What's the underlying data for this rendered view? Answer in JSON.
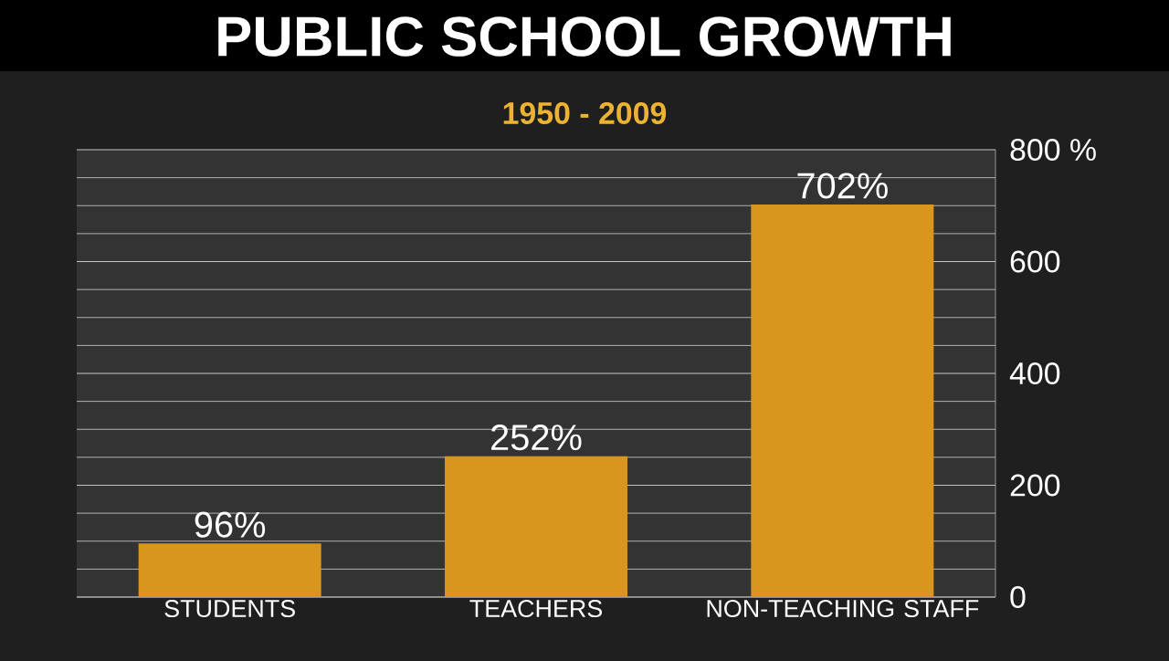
{
  "chart_data": {
    "type": "bar",
    "title": "PUBLIC SCHOOL GROWTH",
    "subtitle": "1950 - 2009",
    "categories": [
      "STUDENTS",
      "TEACHERS",
      "NON-TEACHING STAFF"
    ],
    "values": [
      96,
      252,
      702
    ],
    "color": "#d8961e",
    "value_labels": [
      "96%",
      "252%",
      "702%"
    ],
    "ylim": [
      0,
      800
    ],
    "yticks": [
      0,
      200,
      400,
      600,
      {
        "value": 800,
        "label": "800 %"
      }
    ],
    "grid": "y"
  }
}
